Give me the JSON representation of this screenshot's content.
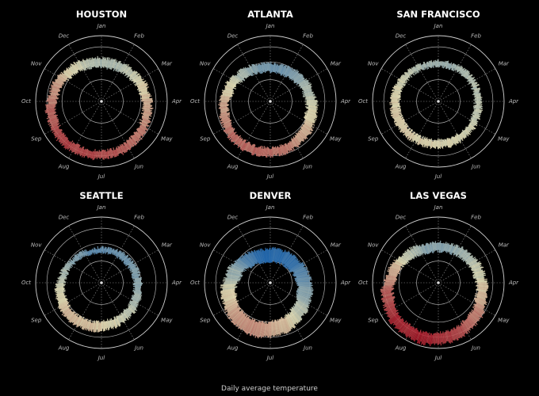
{
  "caption": "Daily average temperature",
  "chart_data": {
    "type": "radial",
    "months": [
      "Jan",
      "Feb",
      "Mar",
      "Apr",
      "May",
      "Jun",
      "Jul",
      "Aug",
      "Sep",
      "Oct",
      "Nov",
      "Dec"
    ],
    "color_scale": {
      "cold": "#2166ac",
      "mild": "#e6e0b8",
      "hot": "#b2182b"
    },
    "grid": true,
    "cities": [
      {
        "name": "HOUSTON",
        "monthly_low": [
          44,
          48,
          55,
          62,
          70,
          75,
          77,
          77,
          72,
          63,
          53,
          46
        ],
        "monthly_high": [
          63,
          67,
          74,
          80,
          86,
          91,
          94,
          95,
          90,
          82,
          72,
          65
        ]
      },
      {
        "name": "ATLANTA",
        "monthly_low": [
          34,
          37,
          44,
          51,
          60,
          68,
          71,
          70,
          64,
          53,
          43,
          37
        ],
        "monthly_high": [
          52,
          57,
          65,
          73,
          80,
          86,
          89,
          88,
          82,
          73,
          63,
          54
        ]
      },
      {
        "name": "SAN FRANCISCO",
        "monthly_low": [
          46,
          48,
          49,
          50,
          52,
          54,
          55,
          56,
          56,
          54,
          50,
          46
        ],
        "monthly_high": [
          57,
          60,
          62,
          64,
          67,
          70,
          71,
          72,
          73,
          70,
          63,
          57
        ]
      },
      {
        "name": "SEATTLE",
        "monthly_low": [
          37,
          37,
          40,
          43,
          48,
          52,
          56,
          57,
          53,
          47,
          41,
          37
        ],
        "monthly_high": [
          47,
          50,
          54,
          59,
          65,
          70,
          76,
          77,
          71,
          60,
          51,
          46
        ]
      },
      {
        "name": "DENVER",
        "monthly_low": [
          18,
          20,
          26,
          33,
          43,
          52,
          58,
          57,
          48,
          36,
          25,
          18
        ],
        "monthly_high": [
          45,
          47,
          55,
          62,
          71,
          82,
          89,
          86,
          78,
          65,
          52,
          44
        ]
      },
      {
        "name": "LAS VEGAS",
        "monthly_low": [
          39,
          43,
          49,
          56,
          66,
          75,
          81,
          79,
          71,
          58,
          46,
          39
        ],
        "monthly_high": [
          58,
          62,
          70,
          78,
          89,
          99,
          104,
          102,
          94,
          80,
          66,
          57
        ]
      }
    ]
  }
}
